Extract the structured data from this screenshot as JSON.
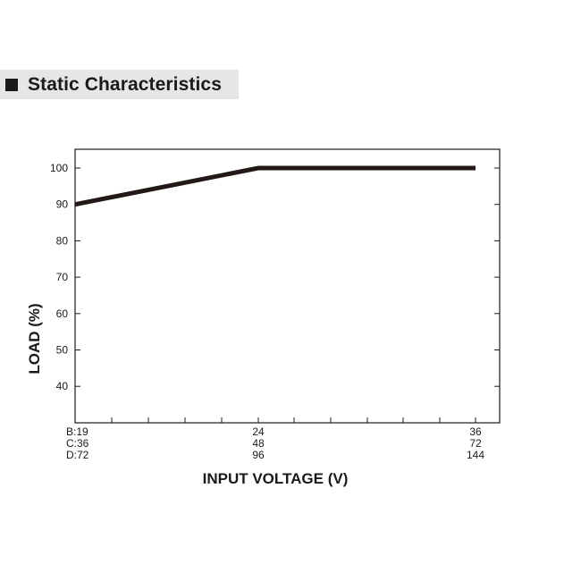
{
  "header": {
    "title": "Static Characteristics"
  },
  "chart_data": {
    "type": "line",
    "xlabel": "INPUT VOLTAGE (V)",
    "ylabel": "LOAD (%)",
    "ylim": [
      35,
      105
    ],
    "y_ticks": [
      100,
      90,
      80,
      70,
      60,
      50,
      40
    ],
    "x_tick_labels": [
      {
        "x": 19,
        "lines": [
          "B:19",
          "C:36",
          "D:72"
        ]
      },
      {
        "x": 24,
        "lines": [
          "24",
          "48",
          "96"
        ]
      },
      {
        "x": 36,
        "lines": [
          "36",
          "72",
          "144"
        ]
      }
    ],
    "series": [
      {
        "x": [
          19,
          24,
          36
        ],
        "y": [
          90,
          100,
          100
        ]
      }
    ],
    "colors": {
      "line": "#231815",
      "axis": "#1a1a1a"
    }
  }
}
